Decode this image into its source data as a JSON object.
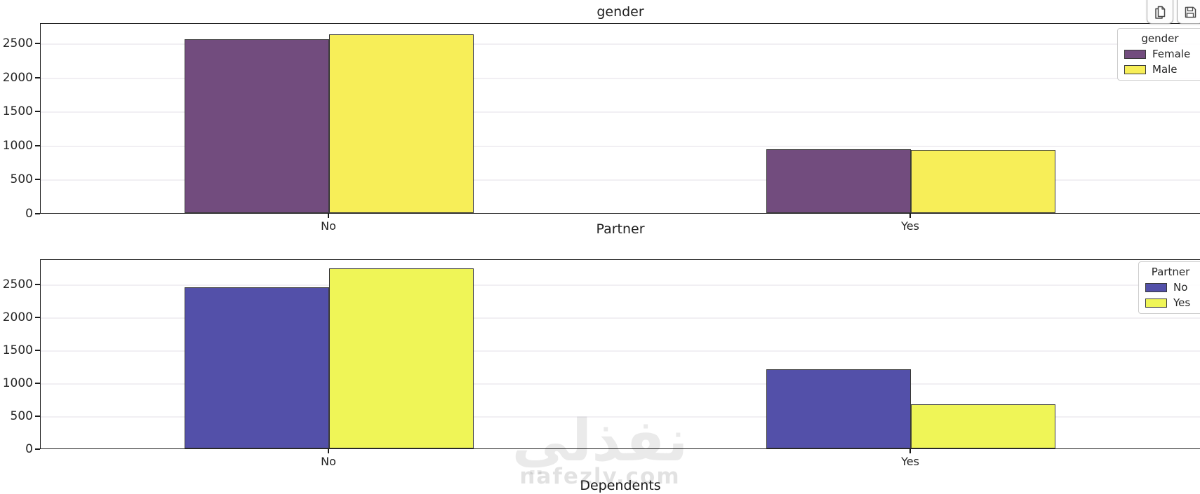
{
  "page": {
    "watermark": {
      "logo_text": "نفذلي",
      "site_text": "nafezly.com"
    }
  },
  "chart_data": [
    {
      "type": "bar",
      "title": "gender",
      "categories": [
        "No",
        "Yes"
      ],
      "series": [
        {
          "name": "Female",
          "color": "#724C7E",
          "values": [
            2549,
            939
          ]
        },
        {
          "name": "Male",
          "color": "#F7EE58",
          "values": [
            2625,
            930
          ]
        }
      ],
      "legend": {
        "title": "gender",
        "entries": [
          "Female",
          "Male"
        ],
        "position": "upper right"
      },
      "xlabel": "",
      "ylabel": "",
      "yticks": [
        0,
        500,
        1000,
        1500,
        2000,
        2500
      ],
      "ylim": [
        0,
        2800
      ],
      "grid": true,
      "bar_edge_color": "#3A3A3A"
    },
    {
      "type": "bar",
      "title": "Partner",
      "categories": [
        "No",
        "Yes"
      ],
      "series": [
        {
          "name": "No",
          "color": "#5350A9",
          "values": [
            2441,
            1200
          ]
        },
        {
          "name": "Yes",
          "color": "#EFF557",
          "values": [
            2733,
            669
          ]
        }
      ],
      "legend": {
        "title": "Partner",
        "entries": [
          "No",
          "Yes"
        ],
        "position": "upper right"
      },
      "xlabel": "",
      "ylabel": "",
      "yticks": [
        0,
        500,
        1000,
        1500,
        2000,
        2500
      ],
      "ylim": [
        0,
        2880
      ],
      "grid": true,
      "bar_edge_color": "#3A3A3A"
    },
    {
      "type": "bar",
      "title": "Dependents",
      "partially_visible": true
    }
  ]
}
